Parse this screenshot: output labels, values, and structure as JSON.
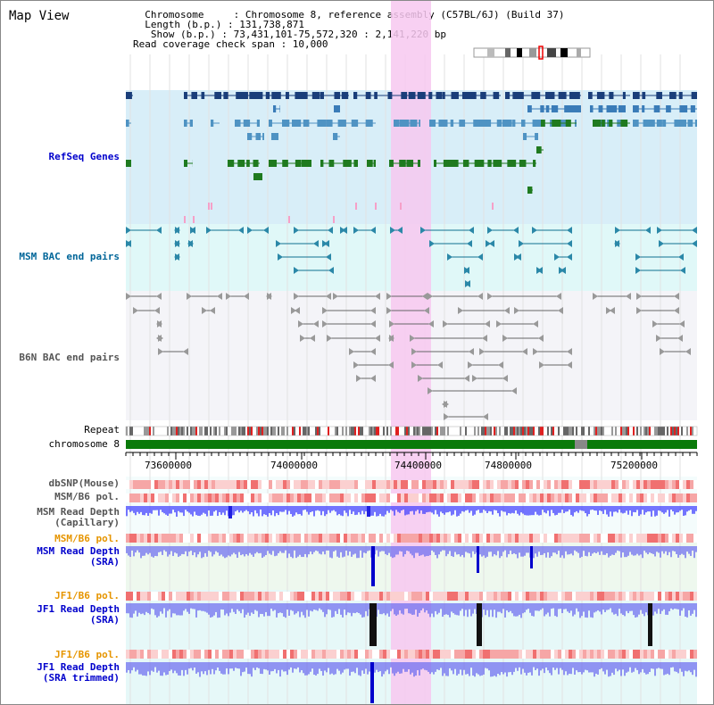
{
  "page": {
    "title": "Map View"
  },
  "header": {
    "line1": "  Chromosome     : Chromosome 8, reference assembly (C57BL/6J) (Build 37)",
    "line2": "  Length (b.p.) : 131,738,871",
    "line3": "   Show (b.p.) : 73,431,101-75,572,320 : 2,141,220 bp",
    "line4": "Read coverage check span : 10,000"
  },
  "tracks": {
    "refseq": "RefSeq Genes",
    "msm_bac": "MSM BAC end pairs",
    "b6n_bac": "B6N BAC end pairs",
    "repeat": "Repeat",
    "chromosome": "chromosome 8",
    "dbsnp": "dbSNP(Mouse)",
    "msm_b6_pol_1": "MSM/B6 pol.",
    "msm_depth_cap": "MSM Read Depth\n(Capillary)",
    "msm_b6_pol_2": "MSM/B6 pol.",
    "msm_depth_sra": "MSM Read Depth\n(SRA)",
    "jf1_b6_pol_1": "JF1/B6 pol.",
    "jf1_depth_sra": "JF1 Read Depth\n(SRA)",
    "jf1_b6_pol_2": "JF1/B6 pol.",
    "jf1_depth_trim": "JF1 Read Depth\n(SRA trimmed)"
  },
  "axis": {
    "ticks": [
      "73600000",
      "74000000",
      "74400000",
      "74800000",
      "75200000"
    ]
  },
  "colors": {
    "refseq_bg": "#d8eef8",
    "msm_bg": "#e0f8f8",
    "b6n_bg": "#f4f4f8",
    "highlight": "#f7c8f0",
    "refseq_label": "#0000cc",
    "msm_label": "#006699",
    "gray_label": "#555555",
    "orange_label": "#e69500",
    "blue_label": "#0000cc"
  }
}
